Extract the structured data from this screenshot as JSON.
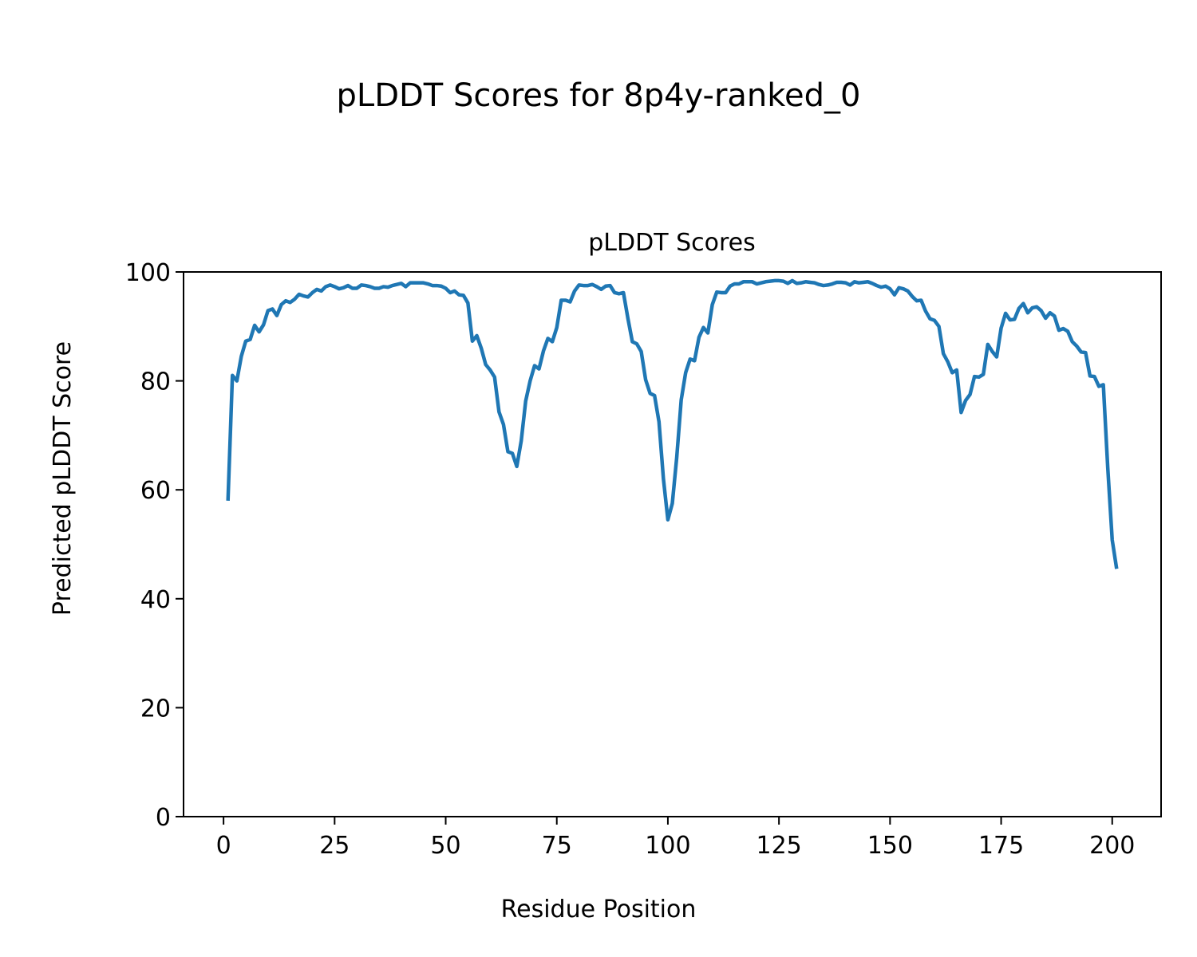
{
  "figure_title": "pLDDT Scores for 8p4y-ranked_0",
  "chart_data": {
    "type": "line",
    "title": "pLDDT Scores",
    "xlabel": "Residue Position",
    "ylabel": "Predicted pLDDT Score",
    "xlim": [
      -9,
      211
    ],
    "ylim": [
      0,
      100
    ],
    "xticks": [
      0,
      25,
      50,
      75,
      100,
      125,
      150,
      175,
      200
    ],
    "yticks": [
      0,
      20,
      40,
      60,
      80,
      100
    ],
    "grid": false,
    "color": "#1f77b4",
    "x_start": 1,
    "values": [
      58,
      81,
      80,
      84.5,
      87.3,
      87.6,
      90.2,
      89,
      90.3,
      92.9,
      93.2,
      92,
      94,
      94.7,
      94.4,
      95,
      95.9,
      95.6,
      95.4,
      96.2,
      96.8,
      96.5,
      97.3,
      97.6,
      97.3,
      96.9,
      97.1,
      97.5,
      97,
      97,
      97.6,
      97.5,
      97.3,
      97,
      97,
      97.3,
      97.2,
      97.5,
      97.7,
      97.9,
      97.3,
      98,
      98,
      98,
      98,
      97.8,
      97.5,
      97.5,
      97.4,
      97,
      96.2,
      96.5,
      95.8,
      95.7,
      94.3,
      87.3,
      88.3,
      86,
      83,
      82,
      80.7,
      74.3,
      72,
      67,
      66.7,
      64.3,
      69,
      76.3,
      80,
      82.8,
      82.2,
      85.5,
      87.8,
      87.2,
      89.8,
      94.8,
      94.8,
      94.5,
      96.5,
      97.6,
      97.5,
      97.5,
      97.7,
      97.3,
      96.8,
      97.4,
      97.5,
      96.2,
      96,
      96.2,
      91.5,
      87.2,
      86.8,
      85.4,
      80.2,
      77.7,
      77.3,
      72.5,
      62,
      54.5,
      57.5,
      66,
      76.5,
      81.5,
      84,
      83.7,
      88,
      89.8,
      88.8,
      94,
      96.3,
      96.2,
      96.2,
      97.4,
      97.8,
      97.8,
      98.2,
      98.2,
      98.2,
      97.8,
      98,
      98.2,
      98.3,
      98.4,
      98.4,
      98.3,
      97.9,
      98.4,
      97.9,
      98,
      98.2,
      98.1,
      98,
      97.7,
      97.5,
      97.6,
      97.8,
      98.1,
      98.1,
      98,
      97.6,
      98.2,
      98,
      98.1,
      98.2,
      97.9,
      97.5,
      97.2,
      97.4,
      96.9,
      95.8,
      97.1,
      96.9,
      96.5,
      95.5,
      94.7,
      94.8,
      92.8,
      91.4,
      91.1,
      90,
      85,
      83.5,
      81.5,
      82,
      74.2,
      76.4,
      77.5,
      80.8,
      80.7,
      81.2,
      86.7,
      85.4,
      84.4,
      89.7,
      92.4,
      91.2,
      91.3,
      93.3,
      94.2,
      92.5,
      93.4,
      93.6,
      92.9,
      91.5,
      92.5,
      91.9,
      89.3,
      89.6,
      89.1,
      87.2,
      86.4,
      85.3,
      85.2,
      80.9,
      80.8,
      79,
      79.3,
      64,
      50.8,
      45.5
    ]
  }
}
